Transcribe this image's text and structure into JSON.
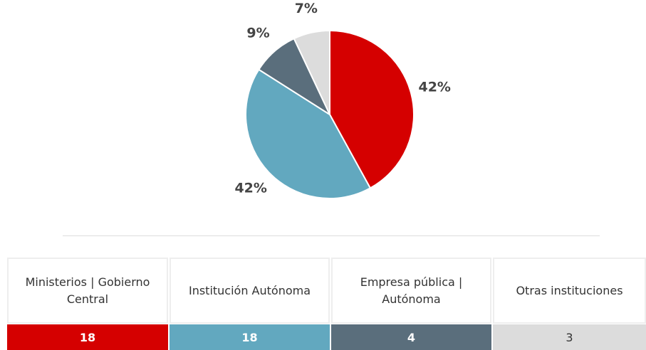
{
  "chart_data": {
    "type": "pie",
    "values": [
      42,
      42,
      9,
      7
    ],
    "value_labels": [
      "42%",
      "42%",
      "9%",
      "7%"
    ],
    "colors": [
      "#d50000",
      "#62a8bf",
      "#5a6e7c",
      "#dcdcdc"
    ]
  },
  "table": {
    "columns": [
      "Ministerios | Gobierno Central",
      "Institución Autónoma",
      "Empresa pública | Autónoma",
      "Otras instituciones"
    ],
    "values": [
      18,
      18,
      4,
      3
    ]
  }
}
